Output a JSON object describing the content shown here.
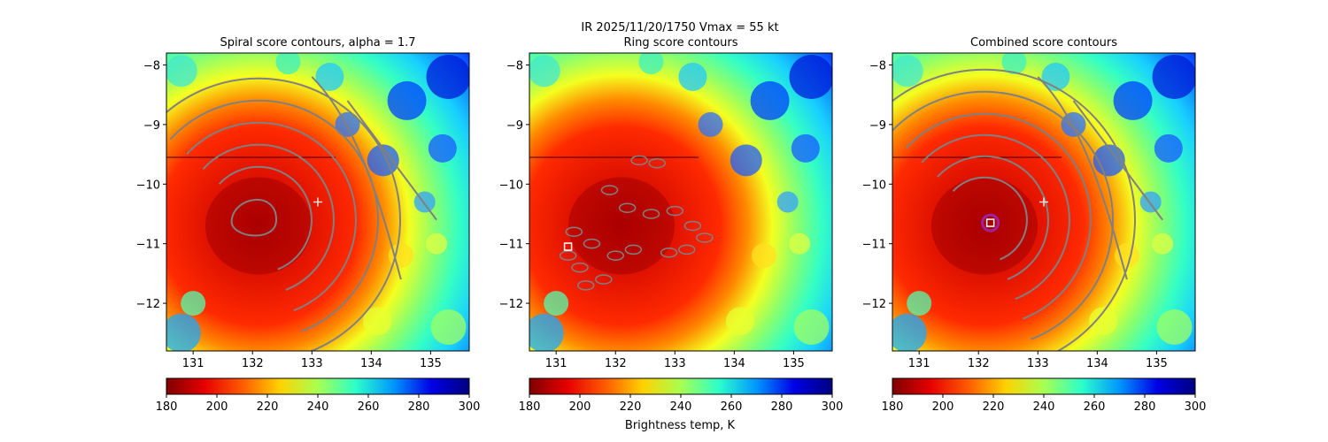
{
  "suptitle": "IR  2025/11/20/1750    Vmax = 55 kt",
  "colorbar_label": "Brightness temp, K",
  "colors": {
    "jet": [
      "#7f0000",
      "#e60000",
      "#ff5a00",
      "#ffd200",
      "#a8ff50",
      "#2cffca",
      "#0096ff",
      "#0000e6",
      "#00007f"
    ],
    "contour": "#808080",
    "marker_ring": "#a020a0",
    "marker_square": "#ffffff"
  },
  "chart_data": [
    {
      "type": "heatmap",
      "title": "Spiral score contours, alpha =  1.7",
      "x_ticks": [
        131,
        132,
        133,
        134,
        135
      ],
      "y_ticks": [
        -8,
        -9,
        -10,
        -11,
        -12
      ],
      "xlim": [
        130.55,
        135.65
      ],
      "ylim": [
        -12.8,
        -7.8
      ],
      "colorbar": {
        "min": 180,
        "max": 300,
        "ticks": [
          180,
          200,
          220,
          240,
          260,
          280,
          300
        ]
      },
      "markers": [
        {
          "kind": "plus",
          "x": 133.1,
          "y": -10.3
        }
      ]
    },
    {
      "type": "heatmap",
      "title": "Ring score contours",
      "x_ticks": [
        131,
        132,
        133,
        134,
        135
      ],
      "y_ticks": [
        -8,
        -9,
        -10,
        -11,
        -12
      ],
      "xlim": [
        130.55,
        135.65
      ],
      "ylim": [
        -12.8,
        -7.8
      ],
      "colorbar": {
        "min": 180,
        "max": 300,
        "ticks": [
          180,
          200,
          220,
          240,
          260,
          280,
          300
        ]
      },
      "markers": [
        {
          "kind": "square",
          "x": 131.2,
          "y": -11.05
        }
      ]
    },
    {
      "type": "heatmap",
      "title": "Combined score contours",
      "x_ticks": [
        131,
        132,
        133,
        134,
        135
      ],
      "y_ticks": [
        -8,
        -9,
        -10,
        -11,
        -12
      ],
      "xlim": [
        130.55,
        135.65
      ],
      "ylim": [
        -12.8,
        -7.8
      ],
      "colorbar": {
        "min": 180,
        "max": 300,
        "ticks": [
          180,
          200,
          220,
          240,
          260,
          280,
          300
        ]
      },
      "markers": [
        {
          "kind": "plus",
          "x": 133.1,
          "y": -10.3
        },
        {
          "kind": "ring",
          "x": 132.2,
          "y": -10.65
        },
        {
          "kind": "square",
          "x": 132.2,
          "y": -10.65
        }
      ]
    }
  ]
}
